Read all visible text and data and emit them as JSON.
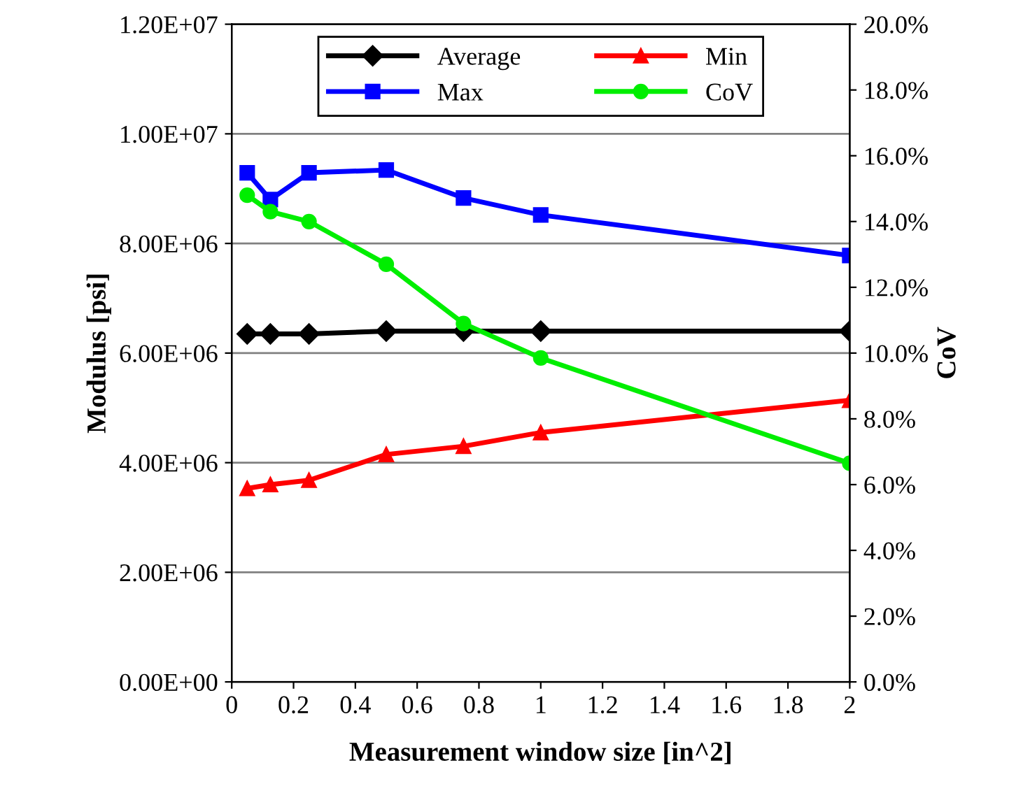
{
  "chart_data": {
    "type": "line",
    "xlabel": "Measurement window size [in^2]",
    "ylabel": "Modulus [psi]",
    "y2label": "CoV",
    "xlim": [
      0,
      2
    ],
    "xticks": [
      0,
      0.2,
      0.4,
      0.6,
      0.8,
      1,
      1.2,
      1.4,
      1.6,
      1.8,
      2
    ],
    "ylim": [
      0,
      12000000
    ],
    "yticks": [
      {
        "value": 0,
        "label": "0.00E+00"
      },
      {
        "value": 2000000,
        "label": "2.00E+06"
      },
      {
        "value": 4000000,
        "label": "4.00E+06"
      },
      {
        "value": 6000000,
        "label": "6.00E+06"
      },
      {
        "value": 8000000,
        "label": "8.00E+06"
      },
      {
        "value": 10000000,
        "label": "1.00E+07"
      },
      {
        "value": 12000000,
        "label": "1.20E+07"
      }
    ],
    "y2lim": [
      0,
      20
    ],
    "y2ticks": [
      {
        "value": 0,
        "label": "0.0%"
      },
      {
        "value": 2,
        "label": "2.0%"
      },
      {
        "value": 4,
        "label": "4.0%"
      },
      {
        "value": 6,
        "label": "6.0%"
      },
      {
        "value": 8,
        "label": "8.0%"
      },
      {
        "value": 10,
        "label": "10.0%"
      },
      {
        "value": 12,
        "label": "12.0%"
      },
      {
        "value": 14,
        "label": "14.0%"
      },
      {
        "value": 16,
        "label": "16.0%"
      },
      {
        "value": 18,
        "label": "18.0%"
      },
      {
        "value": 20,
        "label": "20.0%"
      }
    ],
    "grid": "y",
    "legend": "top",
    "line_style": "solid",
    "x": [
      0.05,
      0.125,
      0.25,
      0.5,
      0.75,
      1,
      2
    ],
    "series": [
      {
        "name": "Average",
        "color": "#000000",
        "marker": "diamond",
        "values": [
          6350000,
          6350000,
          6350000,
          6400000,
          6400000,
          6400000,
          6400000
        ]
      },
      {
        "name": "Max",
        "color": "#0000ff",
        "marker": "square",
        "values": [
          9290000,
          8800000,
          9290000,
          9340000,
          8830000,
          8520000,
          7780000
        ]
      },
      {
        "name": "Min",
        "color": "#ff0000",
        "marker": "triangle",
        "values": [
          3530000,
          3600000,
          3680000,
          4150000,
          4300000,
          4550000,
          5140000
        ]
      },
      {
        "name": "CoV",
        "color": "#00ee00",
        "marker": "circle",
        "axis": "y2",
        "values": [
          14.8,
          14.3,
          14.0,
          12.7,
          10.9,
          9.85,
          6.65
        ]
      }
    ]
  }
}
